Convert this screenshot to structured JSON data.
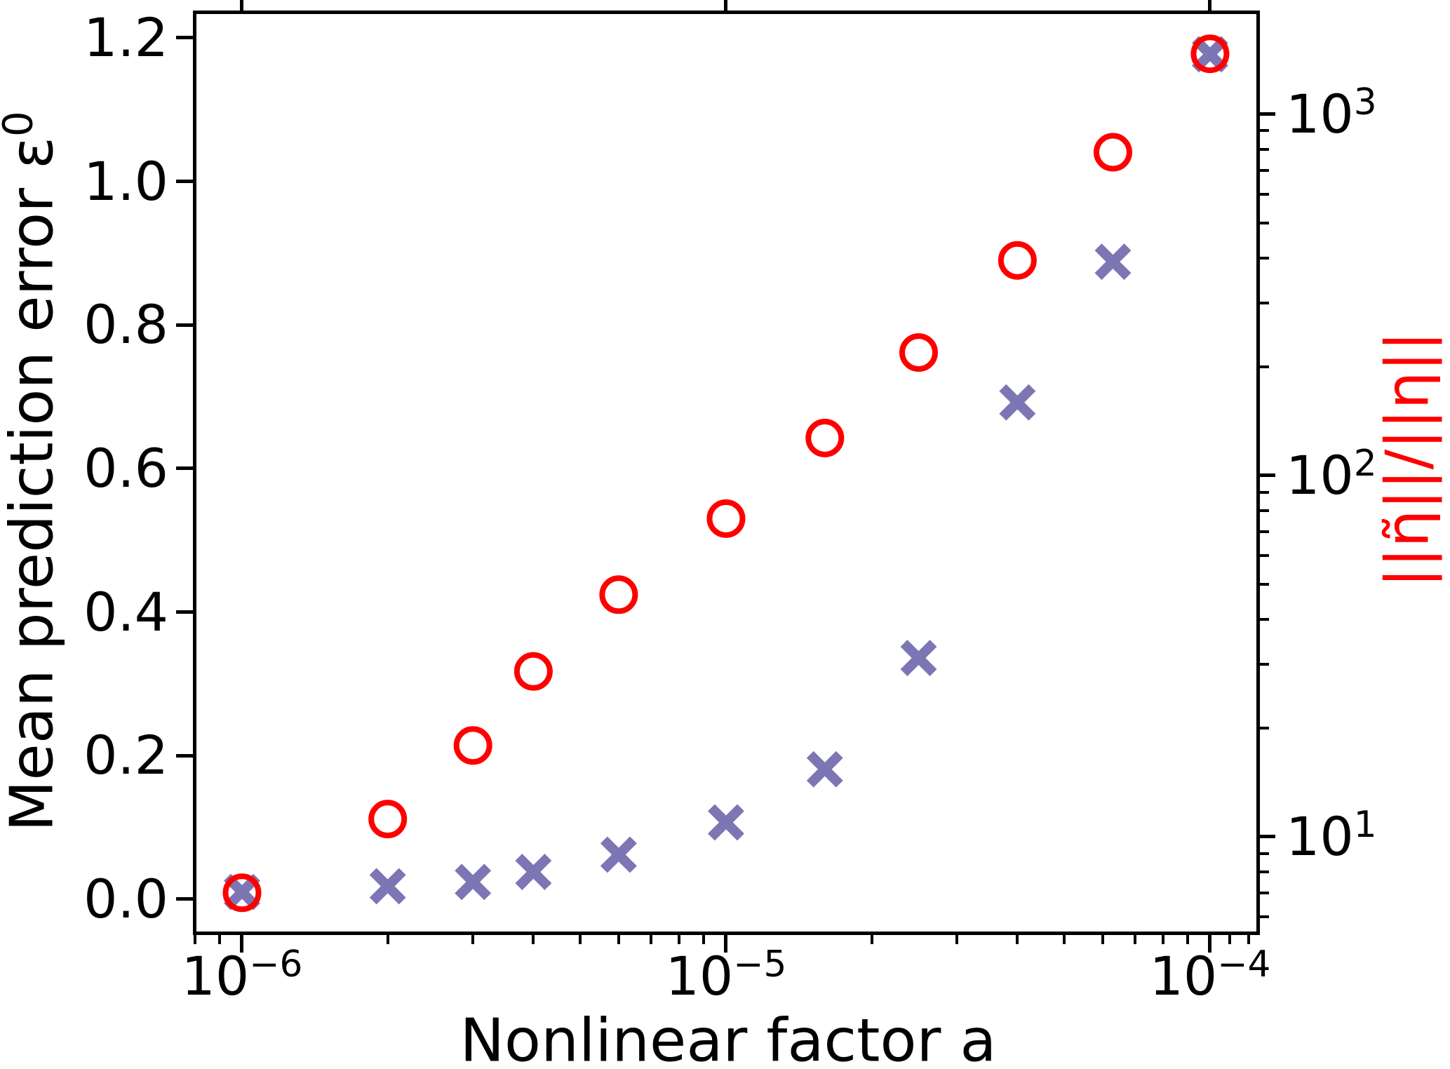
{
  "figure": {
    "background": "#ffffff",
    "axis_color": "#000000"
  },
  "labels": {
    "xlabel": "Nonlinear factor a",
    "ylabel_left_main": "Mean prediction error ε",
    "ylabel_left_sup": "0",
    "ylabel_right": "||η̃||/||η||",
    "ylabel_right_color": "#ff0000"
  },
  "chart_data": {
    "type": "scatter",
    "title": "",
    "xlabel": "Nonlinear factor a",
    "ylabel_left": "Mean prediction error ε⁰",
    "ylabel_right": "||η̃||/||η||",
    "x_scale": "log",
    "y_left_scale": "linear",
    "y_right_scale": "log",
    "grid": false,
    "legend": "none",
    "x": [
      1e-06,
      2e-06,
      3e-06,
      4e-06,
      6e-06,
      1e-05,
      1.6e-05,
      2.5e-05,
      4e-05,
      6.3e-05,
      0.0001
    ],
    "series": [
      {
        "name": "Mean prediction error ε⁰",
        "axis": "left",
        "marker": "X",
        "color": "#7c76b4",
        "values": [
          0.01,
          0.018,
          0.024,
          0.038,
          0.062,
          0.107,
          0.181,
          0.336,
          0.692,
          0.888,
          1.177
        ]
      },
      {
        "name": "||η̃||/||η||",
        "axis": "right",
        "marker": "o",
        "color": "#ff0000",
        "values": [
          7.0,
          11.2,
          17.9,
          28.7,
          46.8,
          76,
          127,
          219,
          394,
          785,
          1470
        ]
      }
    ],
    "axes": {
      "xlim": [
        7.97e-07,
        0.0001255
      ],
      "ylim_left": [
        -0.047,
        1.236
      ],
      "ylim_right": [
        5.42,
        1920
      ],
      "x_major_ticks": [
        {
          "value": 1e-06,
          "mantissa": "10",
          "exponent": "−6"
        },
        {
          "value": 1e-05,
          "mantissa": "10",
          "exponent": "−5"
        },
        {
          "value": 0.0001,
          "mantissa": "10",
          "exponent": "−4"
        }
      ],
      "x_minor_ticks": [
        8e-07,
        9e-07,
        2e-06,
        3e-06,
        4e-06,
        5e-06,
        6e-06,
        7e-06,
        8e-06,
        9e-06,
        2e-05,
        3e-05,
        4e-05,
        5e-05,
        6e-05,
        7e-05,
        8e-05,
        9e-05,
        0.00011,
        0.00012
      ],
      "y_left_ticks": [
        {
          "value": 0.0,
          "label": "0.0"
        },
        {
          "value": 0.2,
          "label": "0.2"
        },
        {
          "value": 0.4,
          "label": "0.4"
        },
        {
          "value": 0.6,
          "label": "0.6"
        },
        {
          "value": 0.8,
          "label": "0.8"
        },
        {
          "value": 1.0,
          "label": "1.0"
        },
        {
          "value": 1.2,
          "label": "1.2"
        }
      ],
      "y_right_major_ticks": [
        {
          "value": 10,
          "mantissa": "10",
          "exponent": "1"
        },
        {
          "value": 100,
          "mantissa": "10",
          "exponent": "2"
        },
        {
          "value": 1000,
          "mantissa": "10",
          "exponent": "3"
        }
      ],
      "y_right_minor_ticks": [
        6,
        7,
        8,
        9,
        20,
        30,
        40,
        50,
        60,
        70,
        80,
        90,
        200,
        300,
        400,
        500,
        600,
        700,
        800,
        900
      ]
    }
  }
}
